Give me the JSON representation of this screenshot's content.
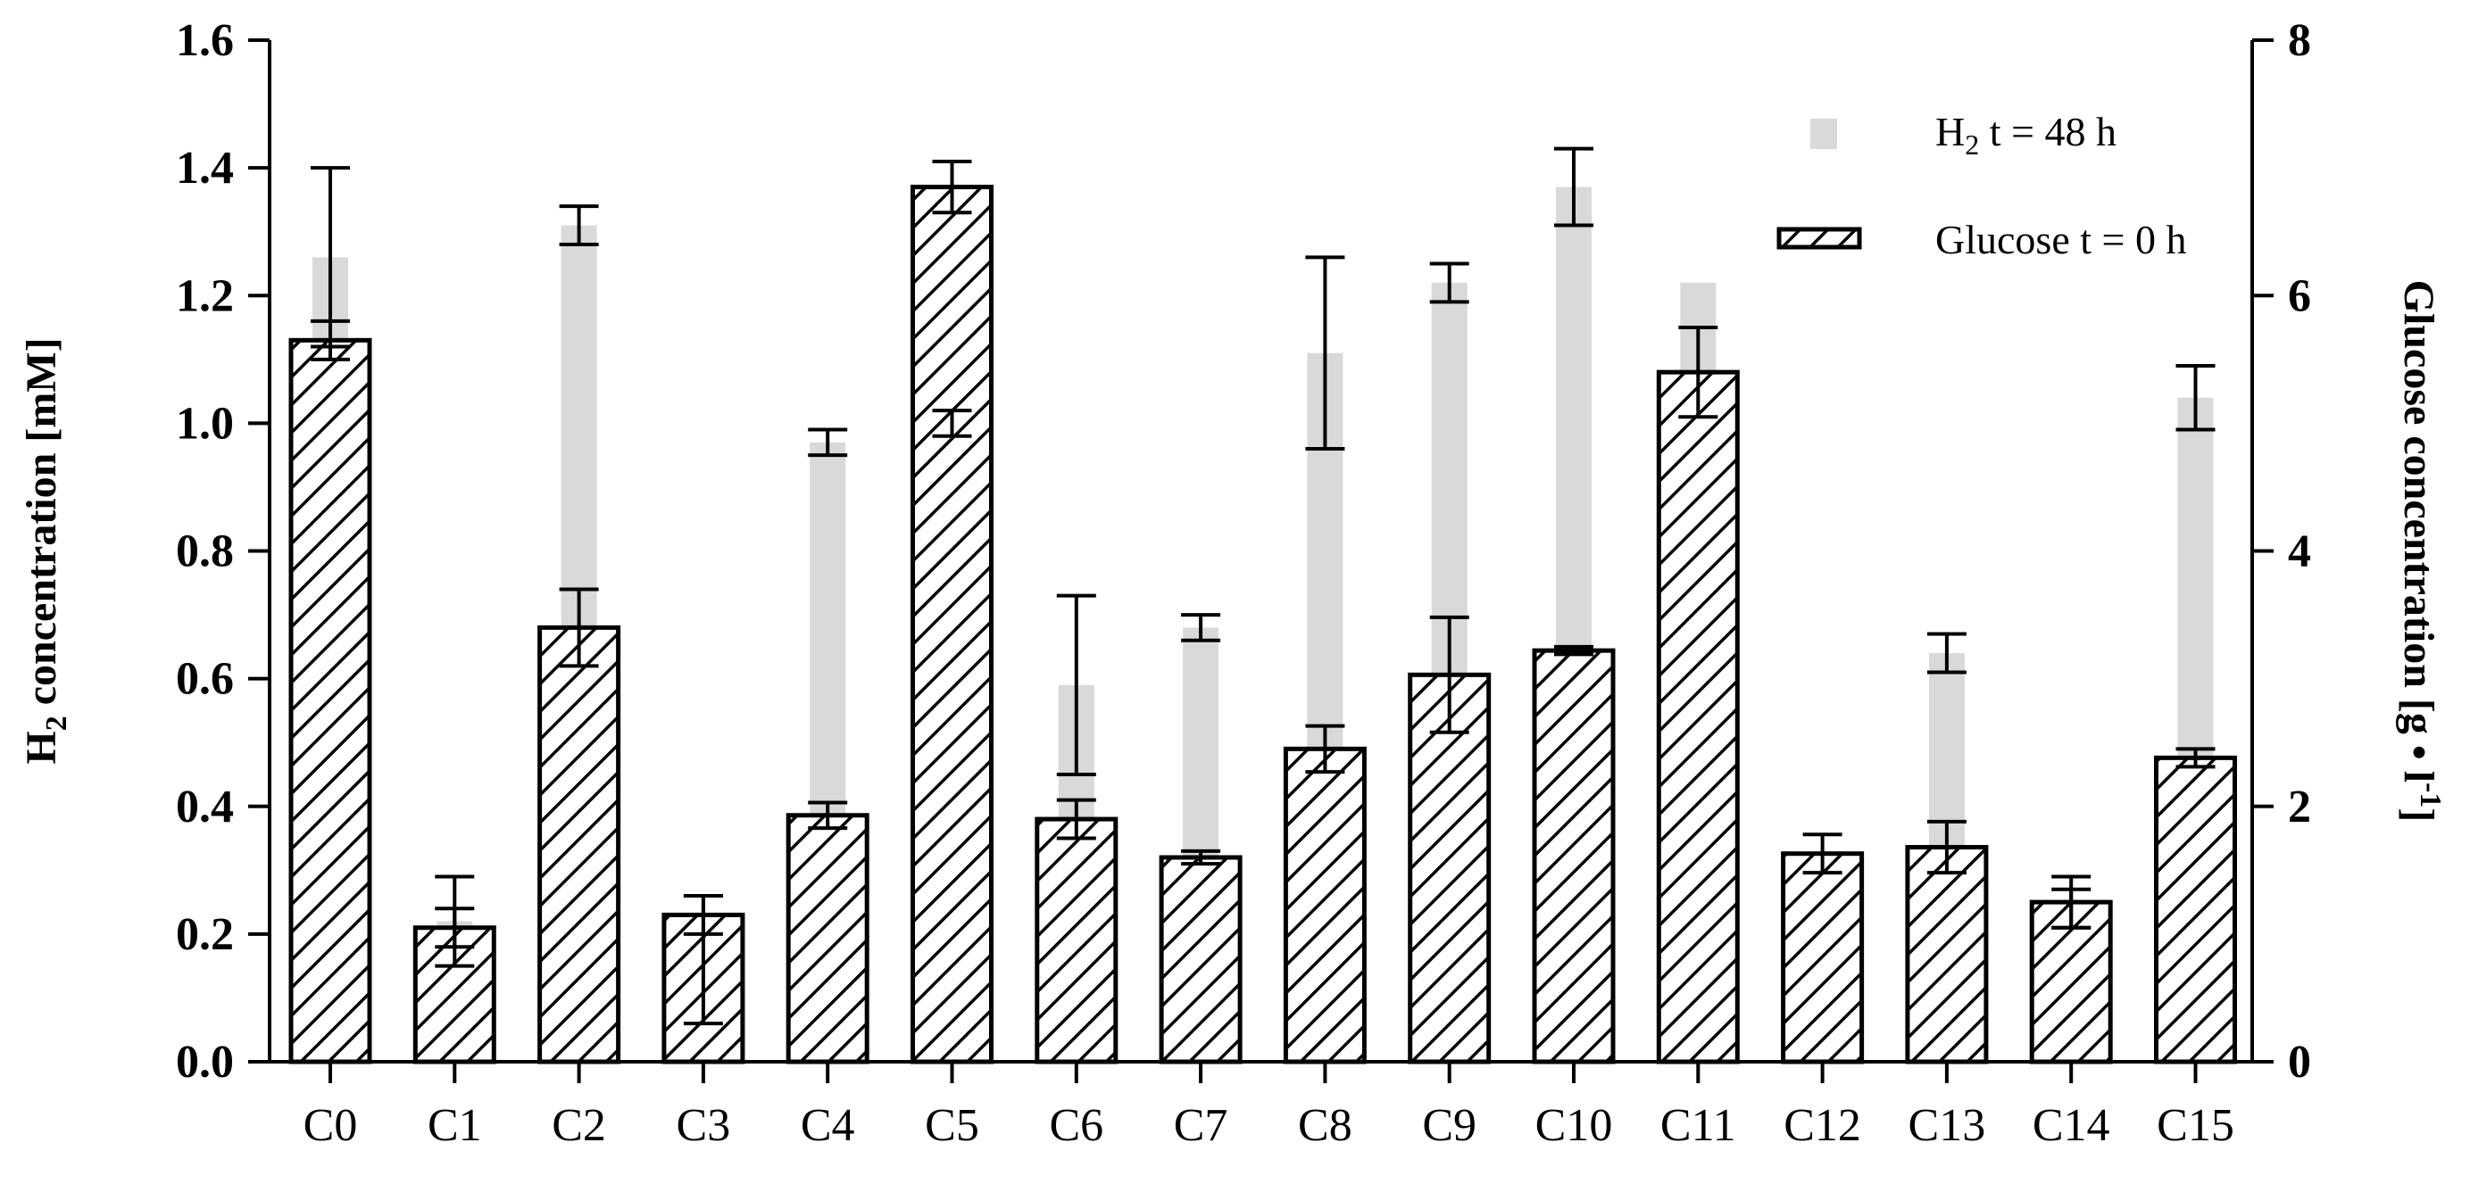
{
  "chart_data": {
    "type": "bar",
    "categories": [
      "C0",
      "C1",
      "C2",
      "C3",
      "C4",
      "C5",
      "C6",
      "C7",
      "C8",
      "C9",
      "C10",
      "C11",
      "C12",
      "C13",
      "C14",
      "C15"
    ],
    "series": [
      {
        "name": "H₂ t = 48 h",
        "axis": "left",
        "style": "solid-light-gray",
        "color": "#d9d9d9",
        "values": [
          1.26,
          0.22,
          1.31,
          0.16,
          0.97,
          1.0,
          0.59,
          0.68,
          1.11,
          1.22,
          1.37,
          1.22,
          0.0,
          0.64,
          0.24,
          1.04
        ],
        "error": [
          0.14,
          0.07,
          0.03,
          0.1,
          0.02,
          0.02,
          0.14,
          0.02,
          0.15,
          0.03,
          0.06,
          0.0,
          0.0,
          0.03,
          0.03,
          0.05
        ]
      },
      {
        "name": "Glucose t = 0 h",
        "axis": "right",
        "style": "hatched-outline",
        "color": "#000000",
        "values": [
          5.65,
          1.05,
          3.4,
          1.15,
          1.93,
          6.85,
          1.9,
          1.6,
          2.45,
          3.03,
          3.22,
          5.4,
          1.63,
          1.68,
          1.25,
          2.38
        ],
        "error": [
          0.15,
          0.15,
          0.3,
          0.15,
          0.1,
          0.2,
          0.15,
          0.05,
          0.18,
          0.45,
          0.03,
          0.35,
          0.15,
          0.2,
          0.2,
          0.07
        ]
      }
    ],
    "ylabel": "H₂ concentration [mM]",
    "ylabel_parts": {
      "main_before": "H",
      "sub": "2",
      "main_after": " concentration [mM]"
    },
    "y2label": "Glucose concentration [g • l⁻¹]",
    "y2label_parts": {
      "main": "Glucose concentration [g • l",
      "sup": "-1",
      "tail": "]"
    },
    "ylim": [
      0,
      1.6
    ],
    "y2lim": [
      0,
      8
    ],
    "yticks": [
      "0.0",
      "0.2",
      "0.4",
      "0.6",
      "0.8",
      "1.0",
      "1.2",
      "1.4",
      "1.6"
    ],
    "y2ticks": [
      "0",
      "2",
      "4",
      "6",
      "8"
    ],
    "legend": {
      "placement": "top-right",
      "h2": {
        "main": "H",
        "sub": "2",
        "rest": " t = 48 h"
      },
      "glucose": "Glucose t = 0 h"
    },
    "grid": false
  }
}
